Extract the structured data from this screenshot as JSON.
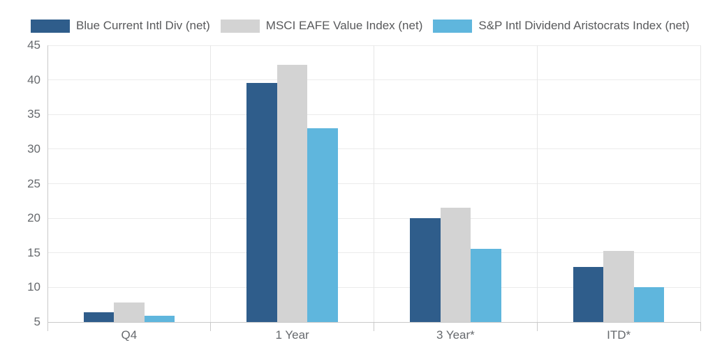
{
  "chart_data": {
    "type": "bar",
    "categories": [
      "Q4",
      "1 Year",
      "3 Year*",
      "ITD*"
    ],
    "series": [
      {
        "name": "Blue Current Intl Div (net)",
        "color": "#2F5D8B",
        "values": [
          6.4,
          39.6,
          20.0,
          13.0
        ]
      },
      {
        "name": "MSCI EAFE Value Index (net)",
        "color": "#D3D3D3",
        "values": [
          7.8,
          42.2,
          21.5,
          15.3
        ]
      },
      {
        "name": "S&P Intl Dividend Aristocrats Index (net)",
        "color": "#5FB6DD",
        "values": [
          5.9,
          33.0,
          15.6,
          10.0
        ]
      }
    ],
    "ylim": [
      5,
      45
    ],
    "ytick_step": 5,
    "yticks": [
      5,
      10,
      15,
      20,
      25,
      30,
      35,
      40,
      45
    ],
    "grid": true,
    "legend_position": "top"
  },
  "colors": {
    "background": "#FFFFFF",
    "grid": "#EBEBEB",
    "separator": "#E6E6E6",
    "axis": "#C9C9C9",
    "tick_text": "#66696D",
    "legend_text": "#58595B"
  }
}
